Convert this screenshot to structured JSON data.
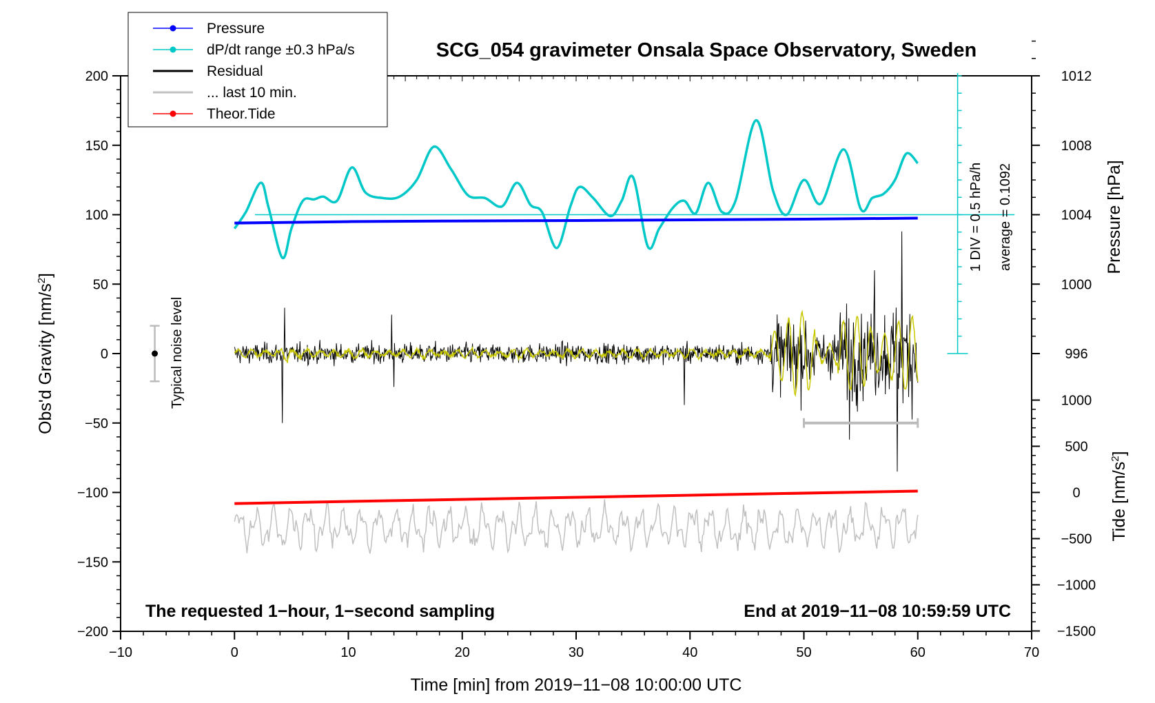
{
  "chart_data": {
    "type": "line",
    "title": "SCG_054 gravimeter Onsala Space Observatory, Sweden",
    "xlabel": "Time [min] from 2019−11−08 10:00:00 UTC",
    "ylabel_left": "Obs'd Gravity [nm/s",
    "ylabel_left_sup": "2",
    "ylabel_left_end": "]",
    "ylabel_right_pressure": "Pressure [hPa]",
    "ylabel_right_tide": "Tide [nm/s",
    "ylabel_right_tide_sup": "2",
    "ylabel_right_tide_end": "]",
    "xlim": [
      -10,
      70
    ],
    "ylim": [
      -200,
      200
    ],
    "x_ticks": [
      "−10",
      "0",
      "10",
      "20",
      "30",
      "40",
      "50",
      "60",
      "70"
    ],
    "x_tick_values": [
      -10,
      0,
      10,
      20,
      30,
      40,
      50,
      60,
      70
    ],
    "y_ticks": [
      "200",
      "150",
      "100",
      "50",
      "0",
      "−50",
      "−100",
      "−150",
      "−200"
    ],
    "y_tick_values": [
      200,
      150,
      100,
      50,
      0,
      -50,
      -100,
      -150,
      -200
    ],
    "pressure_axis": {
      "ticks": [
        "1012",
        "1008",
        "1004",
        "1000",
        "996"
      ],
      "values": [
        1012,
        1008,
        1004,
        1000,
        996
      ],
      "reference": 1004,
      "left_units_per_hPa": 12.5
    },
    "tide_axis": {
      "ticks": [
        "1000",
        "500",
        "0",
        "−500",
        "−1000",
        "−1500"
      ],
      "values": [
        1000,
        500,
        0,
        -500,
        -1000,
        -1500
      ],
      "range": [
        -1500,
        1500
      ]
    },
    "legend": [
      {
        "label": "Pressure",
        "color": "#0000ff",
        "marker": true
      },
      {
        "label": "dP/dt range ±0.3 hPa/s",
        "color": "#00c8c8",
        "marker": true
      },
      {
        "label": "Residual",
        "color": "#000000",
        "marker": false
      },
      {
        "label": "... last 10 min.",
        "color": "#c0c0c0",
        "marker": false
      },
      {
        "label": "Theor.Tide",
        "color": "#ff0000",
        "marker": true
      }
    ],
    "series": [
      {
        "name": "Pressure",
        "color": "#0000ff",
        "x": [
          0,
          10,
          20,
          30,
          40,
          50,
          60
        ],
        "y": [
          94,
          95,
          95.5,
          95.8,
          96.3,
          96.8,
          97.5
        ]
      },
      {
        "name": "dP/dt",
        "color": "#00c8c8",
        "x": [
          0,
          1,
          2.3,
          3,
          4.2,
          5,
          6,
          7,
          7.8,
          9,
          10.3,
          11.5,
          13,
          14.5,
          16,
          17.5,
          19,
          20.5,
          22,
          23.5,
          24.8,
          26,
          27,
          28.3,
          29.5,
          30.3,
          31.5,
          33,
          34,
          35,
          36.3,
          37.3,
          38.5,
          39.5,
          40.5,
          41.6,
          42.8,
          44,
          45.8,
          47.3,
          48.5,
          50,
          51.5,
          53.5,
          55,
          56,
          57,
          58,
          59,
          60
        ],
        "y": [
          90,
          102,
          123,
          105,
          69,
          90,
          110,
          111,
          113,
          110,
          134,
          116,
          112,
          113,
          125,
          149,
          133,
          114,
          112,
          106,
          123,
          107,
          102,
          76,
          106,
          120,
          112,
          99,
          110,
          127,
          77,
          90,
          105,
          110,
          101,
          123,
          102,
          110,
          168,
          117,
          100,
          125,
          108,
          147,
          104,
          112,
          115,
          125,
          144,
          137
        ]
      },
      {
        "name": "Residual",
        "color": "#000000",
        "description": "1-second residual gravity, amplitude growing after 47 min"
      },
      {
        "name": "Residual (smoothed)",
        "color": "#c8c800",
        "description": "yellow smoothed residual"
      },
      {
        "name": "... last 10 min.",
        "color": "#c0c0c0",
        "baseline": -125
      },
      {
        "name": "Theor.Tide",
        "color": "#ff0000",
        "x": [
          0,
          60
        ],
        "y": [
          -108,
          -99
        ]
      }
    ],
    "typical_noise_level": {
      "label": "Typical noise level",
      "x": -7,
      "y": 0,
      "range": [
        -20,
        20
      ]
    },
    "last_10_min_bar": {
      "x": [
        50,
        60
      ],
      "y": -50
    },
    "scale_bar": {
      "div_label": "1 DIV = 0.5 hPa/h",
      "average_label": "average = 0.1092"
    },
    "notes": {
      "left": "The requested 1−hour, 1−second sampling",
      "right": "End at 2019−11−08 10:59:59 UTC"
    }
  }
}
